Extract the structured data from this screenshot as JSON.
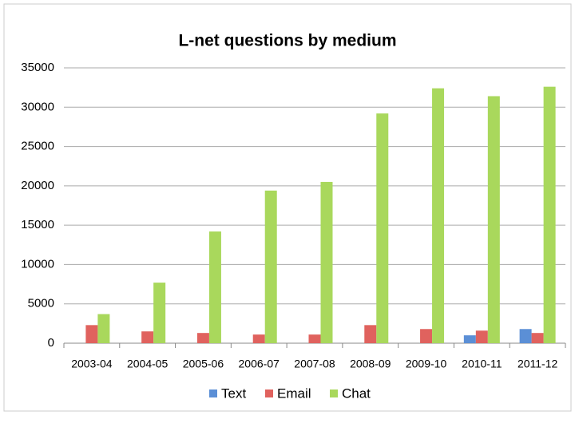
{
  "chart_data": {
    "type": "bar",
    "title": "L-net questions by medium",
    "categories": [
      "2003-04",
      "2004-05",
      "2005-06",
      "2006-07",
      "2007-08",
      "2008-09",
      "2009-10",
      "2010-11",
      "2011-12"
    ],
    "series": [
      {
        "name": "Text",
        "color": "#5b8fd6",
        "values": [
          null,
          null,
          null,
          null,
          null,
          null,
          null,
          1000,
          1800
        ]
      },
      {
        "name": "Email",
        "color": "#e0625e",
        "values": [
          2300,
          1500,
          1300,
          1100,
          1100,
          2300,
          1800,
          1600,
          1300
        ]
      },
      {
        "name": "Chat",
        "color": "#a9d85c",
        "values": [
          3700,
          7700,
          14200,
          19400,
          20500,
          29200,
          32400,
          31400,
          32600
        ]
      }
    ],
    "ylim": [
      0,
      35000
    ],
    "yticks": [
      0,
      5000,
      10000,
      15000,
      20000,
      25000,
      30000,
      35000
    ],
    "grid": true
  }
}
